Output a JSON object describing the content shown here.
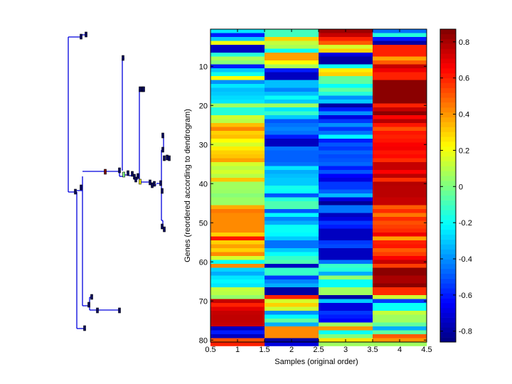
{
  "chart_data": {
    "type": "heatmap",
    "title": "",
    "xlabel": "Samples (original order)",
    "ylabel": "Genes (reordered according to dendrogram)",
    "xlim": [
      0.5,
      4.5
    ],
    "ylim": [
      0.5,
      80.5
    ],
    "x_ticks": [
      "0.5",
      "1",
      "1.5",
      "2",
      "2.5",
      "3",
      "3.5",
      "4",
      "4.5"
    ],
    "y_ticks": [
      "10",
      "20",
      "30",
      "40",
      "50",
      "60",
      "70",
      "80"
    ],
    "colormap": "jet",
    "clim": [
      -0.86,
      0.87
    ],
    "colorbar_ticks": [
      "-0.8",
      "-0.6",
      "-0.4",
      "-0.2",
      "0",
      "0.2",
      "0.4",
      "0.6",
      "0.8"
    ],
    "colorbar_tick_values": [
      -0.8,
      -0.6,
      -0.4,
      -0.2,
      0,
      0.2,
      0.4,
      0.6,
      0.8
    ],
    "columns": [
      "1",
      "2",
      "3",
      "4"
    ],
    "rows": [
      [
        -0.25,
        -0.1,
        0.82,
        -0.45
      ],
      [
        -0.6,
        -0.1,
        0.75,
        -0.15
      ],
      [
        -0.3,
        0.3,
        0.6,
        -0.6
      ],
      [
        0.2,
        0.12,
        0.5,
        -0.8
      ],
      [
        -0.75,
        0.08,
        0.15,
        0.6
      ],
      [
        -0.75,
        -0.2,
        0.3,
        0.6
      ],
      [
        -0.15,
        0.38,
        -0.7,
        0.6
      ],
      [
        0.08,
        0.38,
        -0.8,
        0.38
      ],
      [
        0.02,
        0.22,
        -0.8,
        0.5
      ],
      [
        -0.6,
        0.08,
        -0.2,
        0.75
      ],
      [
        -0.3,
        -0.6,
        0.25,
        0.68
      ],
      [
        -0.18,
        -0.75,
        0.3,
        0.6
      ],
      [
        0.22,
        -0.75,
        -0.05,
        0.6
      ],
      [
        -0.4,
        -0.32,
        -0.05,
        0.85
      ],
      [
        -0.25,
        -0.32,
        -0.2,
        0.85
      ],
      [
        -0.32,
        -0.42,
        -0.05,
        0.85
      ],
      [
        -0.3,
        -0.32,
        -0.15,
        0.85
      ],
      [
        -0.27,
        -0.2,
        -0.4,
        0.85
      ],
      [
        -0.25,
        -0.3,
        -0.3,
        0.85
      ],
      [
        0.06,
        0.06,
        -0.8,
        0.6
      ],
      [
        -0.15,
        -0.25,
        -0.6,
        0.75
      ],
      [
        -0.15,
        -0.12,
        -0.4,
        0.85
      ],
      [
        0.14,
        -0.3,
        -0.7,
        0.65
      ],
      [
        0.1,
        -0.5,
        -0.55,
        0.78
      ],
      [
        0.33,
        -0.45,
        -0.4,
        0.62
      ],
      [
        0.43,
        -0.42,
        -0.55,
        0.52
      ],
      [
        0.3,
        -0.45,
        -0.45,
        0.62
      ],
      [
        0.33,
        -0.6,
        -0.22,
        0.6
      ],
      [
        0.22,
        -0.75,
        -0.6,
        0.62
      ],
      [
        0.15,
        -0.75,
        -0.5,
        0.66
      ],
      [
        0.25,
        -0.45,
        -0.55,
        0.67
      ],
      [
        0.3,
        -0.48,
        -0.48,
        0.62
      ],
      [
        0.32,
        -0.48,
        -0.52,
        0.64
      ],
      [
        0.38,
        -0.48,
        -0.5,
        0.58
      ],
      [
        0.15,
        -0.45,
        -0.47,
        0.75
      ],
      [
        0.1,
        -0.25,
        -0.6,
        0.75
      ],
      [
        0.15,
        -0.35,
        -0.5,
        0.66
      ],
      [
        0.1,
        -0.32,
        -0.65,
        0.77
      ],
      [
        0.32,
        -0.3,
        -0.7,
        0.58
      ],
      [
        0.06,
        -0.3,
        -0.55,
        0.78
      ],
      [
        0.06,
        -0.18,
        -0.55,
        0.77
      ],
      [
        0.05,
        -0.2,
        -0.48,
        0.77
      ],
      [
        0.02,
        -0.5,
        -0.33,
        0.77
      ],
      [
        0.05,
        -0.15,
        -0.7,
        0.75
      ],
      [
        0.05,
        -0.08,
        -0.82,
        0.75
      ],
      [
        0.36,
        -0.08,
        -0.45,
        0.5
      ],
      [
        0.45,
        -0.5,
        -0.45,
        0.58
      ],
      [
        0.42,
        -0.22,
        -0.75,
        0.45
      ],
      [
        0.42,
        -0.42,
        -0.7,
        0.58
      ],
      [
        0.42,
        -0.35,
        -0.55,
        0.52
      ],
      [
        0.42,
        -0.2,
        -0.6,
        0.55
      ],
      [
        0.42,
        -0.2,
        -0.75,
        0.58
      ],
      [
        0.3,
        -0.22,
        -0.75,
        0.68
      ],
      [
        0.62,
        -0.3,
        -0.75,
        0.38
      ],
      [
        0.3,
        -0.45,
        -0.55,
        0.6
      ],
      [
        0.38,
        -0.45,
        -0.52,
        0.62
      ],
      [
        0.3,
        -0.3,
        -0.75,
        0.5
      ],
      [
        0.42,
        -0.2,
        -0.75,
        0.55
      ],
      [
        0.15,
        -0.12,
        -0.75,
        0.66
      ],
      [
        -0.2,
        -0.08,
        -0.45,
        0.75
      ],
      [
        0.42,
        -0.75,
        -0.12,
        0.55
      ],
      [
        -0.28,
        -0.12,
        -0.15,
        0.85
      ],
      [
        -0.35,
        -0.12,
        -0.35,
        0.85
      ],
      [
        -0.25,
        -0.55,
        0.04,
        0.8
      ],
      [
        -0.22,
        -0.42,
        -0.2,
        0.8
      ],
      [
        -0.25,
        -0.35,
        -0.2,
        0.85
      ],
      [
        0.12,
        -0.8,
        0.06,
        0.58
      ],
      [
        0.1,
        -0.8,
        0.06,
        0.58
      ],
      [
        0.04,
        0.6,
        -0.8,
        0.14
      ],
      [
        0.75,
        0.15,
        -0.3,
        -0.55
      ],
      [
        0.6,
        0.3,
        -0.7,
        -0.2
      ],
      [
        0.7,
        0.13,
        -0.7,
        -0.2
      ],
      [
        0.75,
        -0.4,
        -0.55,
        0.12
      ],
      [
        0.76,
        -0.22,
        -0.6,
        0.06
      ],
      [
        0.76,
        -0.05,
        -0.65,
        0.06
      ],
      [
        0.75,
        -0.35,
        0.06,
        -0.05
      ],
      [
        -0.75,
        0.42,
        0.4,
        -0.35
      ],
      [
        -0.6,
        0.42,
        -0.2,
        -0.05
      ],
      [
        -0.75,
        0.42,
        0.0,
        0.5
      ],
      [
        0.52,
        -0.8,
        0.26,
        0.4
      ],
      [
        0.6,
        -0.7,
        0.06,
        0.06
      ]
    ]
  }
}
